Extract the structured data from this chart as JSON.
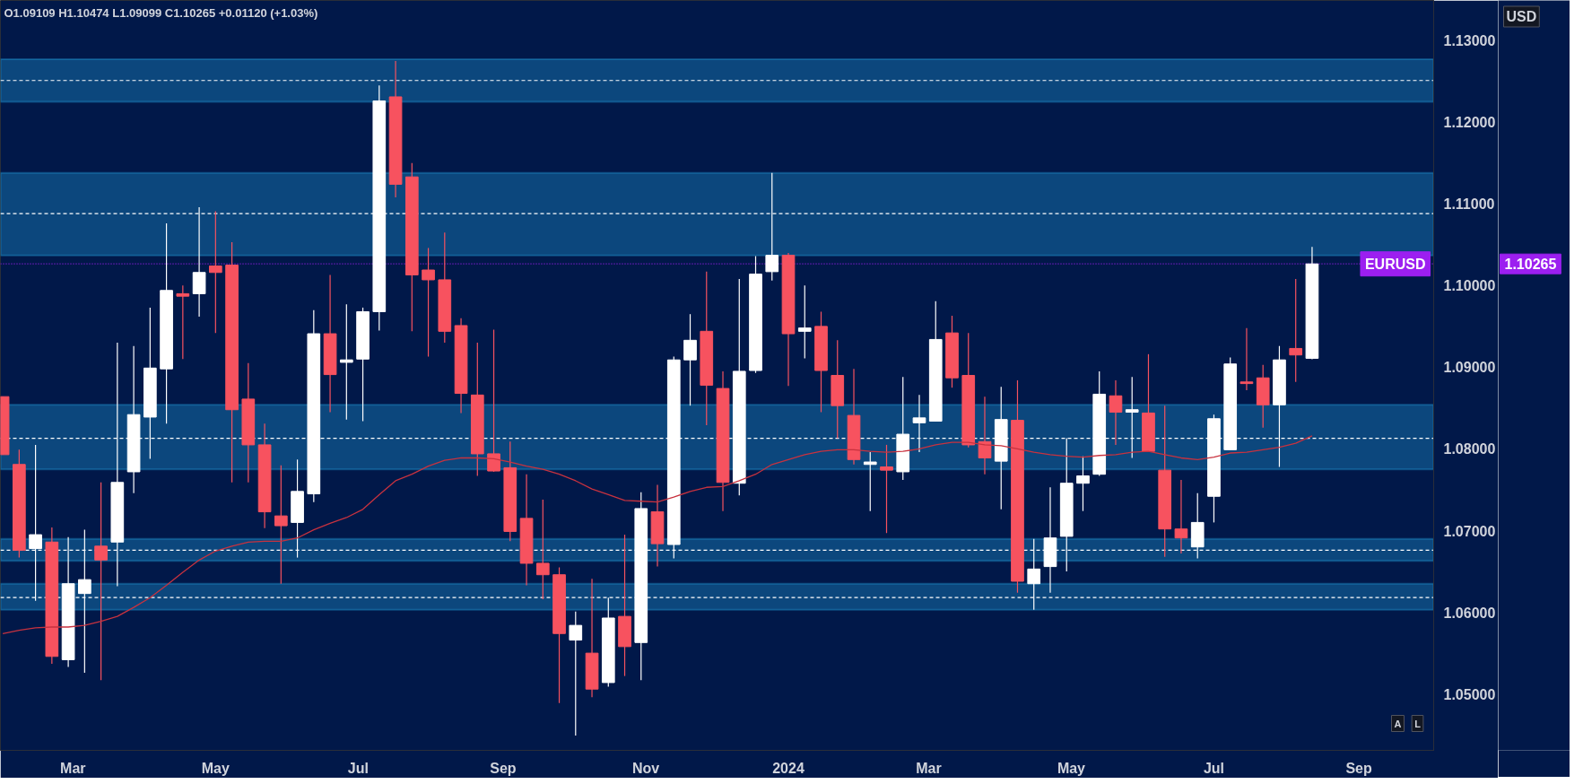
{
  "chart_data": {
    "type": "candlestick",
    "annotations": [
      "O1.09109 H1.10474 L1.09099 C1.10265 +0.01120 (+1.03%)",
      "USD",
      "A",
      "L",
      "1.10265"
    ],
    "x": [
      "2023-01-30",
      "2023-02-06",
      "2023-02-13",
      "2023-02-20",
      "2023-02-27",
      "2023-03-06",
      "2023-03-13",
      "2023-03-20",
      "2023-03-27",
      "2023-04-03",
      "2023-04-10",
      "2023-04-17",
      "2023-04-24",
      "2023-05-01",
      "2023-05-08",
      "2023-05-15",
      "2023-05-22",
      "2023-05-29",
      "2023-06-05",
      "2023-06-12",
      "2023-06-19",
      "2023-06-26",
      "2023-07-03",
      "2023-07-10",
      "2023-07-17",
      "2023-07-24",
      "2023-07-31",
      "2023-08-07",
      "2023-08-14",
      "2023-08-21",
      "2023-08-28",
      "2023-09-04",
      "2023-09-11",
      "2023-09-18",
      "2023-09-25",
      "2023-10-02",
      "2023-10-09",
      "2023-10-16",
      "2023-10-23",
      "2023-10-30",
      "2023-11-06",
      "2023-11-13",
      "2023-11-20",
      "2023-11-27",
      "2023-12-04",
      "2023-12-11",
      "2023-12-18",
      "2023-12-25",
      "2024-01-01",
      "2024-01-08",
      "2024-01-15",
      "2024-01-22",
      "2024-01-29",
      "2024-02-05",
      "2024-02-12",
      "2024-02-19",
      "2024-02-26",
      "2024-03-04",
      "2024-03-11",
      "2024-03-18",
      "2024-03-25",
      "2024-04-01",
      "2024-04-08",
      "2024-04-15",
      "2024-04-22",
      "2024-04-29",
      "2024-05-06",
      "2024-05-13",
      "2024-05-20",
      "2024-05-27",
      "2024-06-03",
      "2024-06-10",
      "2024-06-17",
      "2024-06-24",
      "2024-07-01",
      "2024-07-08",
      "2024-07-15",
      "2024-07-22",
      "2024-07-29",
      "2024-08-05",
      "2024-08-12"
    ],
    "ohlc": [
      [
        1.0864,
        1.0864,
        1.0793,
        1.0793
      ],
      [
        1.0781,
        1.0799,
        1.0667,
        1.0676
      ],
      [
        1.0678,
        1.0805,
        1.0614,
        1.0695
      ],
      [
        1.0686,
        1.0704,
        1.0537,
        1.0546
      ],
      [
        1.0542,
        1.0692,
        1.0533,
        1.0635
      ],
      [
        1.0623,
        1.0701,
        1.0526,
        1.064
      ],
      [
        1.0681,
        1.0759,
        1.0517,
        1.0664
      ],
      [
        1.0686,
        1.093,
        1.0632,
        1.0759
      ],
      [
        1.0772,
        1.0926,
        1.0746,
        1.0842
      ],
      [
        1.0839,
        1.0973,
        1.0788,
        1.0899
      ],
      [
        1.0898,
        1.1076,
        1.0831,
        1.0994
      ],
      [
        1.099,
        1.1,
        1.091,
        1.0987
      ],
      [
        1.099,
        1.1096,
        1.0962,
        1.1016
      ],
      [
        1.1024,
        1.1091,
        1.0942,
        1.1016
      ],
      [
        1.1025,
        1.1053,
        1.0759,
        1.0848
      ],
      [
        1.0861,
        1.0905,
        1.0759,
        1.0805
      ],
      [
        1.0805,
        1.0831,
        1.0703,
        1.0723
      ],
      [
        1.0718,
        1.078,
        1.0635,
        1.0706
      ],
      [
        1.071,
        1.0787,
        1.0667,
        1.0748
      ],
      [
        1.0745,
        1.097,
        1.0735,
        1.0941
      ],
      [
        1.0941,
        1.1013,
        1.0845,
        1.0891
      ],
      [
        1.0906,
        1.0977,
        1.0836,
        1.0909
      ],
      [
        1.091,
        1.0973,
        1.0834,
        1.0968
      ],
      [
        1.0968,
        1.1245,
        1.0945,
        1.1226
      ],
      [
        1.1231,
        1.1275,
        1.1108,
        1.1124
      ],
      [
        1.1133,
        1.115,
        1.0944,
        1.1013
      ],
      [
        1.1019,
        1.1046,
        1.0913,
        1.1007
      ],
      [
        1.1007,
        1.1065,
        1.093,
        1.0944
      ],
      [
        1.0951,
        1.096,
        1.0844,
        1.0868
      ],
      [
        1.0866,
        1.093,
        1.0767,
        1.0794
      ],
      [
        1.0794,
        1.0946,
        1.0772,
        1.0773
      ],
      [
        1.0777,
        1.0809,
        1.0687,
        1.0699
      ],
      [
        1.0715,
        1.0769,
        1.0633,
        1.066
      ],
      [
        1.066,
        1.0738,
        1.0616,
        1.0646
      ],
      [
        1.0646,
        1.0655,
        1.0489,
        1.0574
      ],
      [
        1.0566,
        1.0601,
        1.0449,
        1.0584
      ],
      [
        1.055,
        1.0641,
        1.0496,
        1.0506
      ],
      [
        1.0514,
        1.0618,
        1.0509,
        1.0593
      ],
      [
        1.0595,
        1.0695,
        1.0522,
        1.0558
      ],
      [
        1.0563,
        1.0747,
        1.0517,
        1.0727
      ],
      [
        1.0723,
        1.0756,
        1.0656,
        1.0684
      ],
      [
        1.0683,
        1.0913,
        1.0666,
        1.0909
      ],
      [
        1.0909,
        1.0965,
        1.0853,
        1.0933
      ],
      [
        1.0944,
        1.1017,
        1.0829,
        1.0878
      ],
      [
        1.0874,
        1.0895,
        1.0724,
        1.0759
      ],
      [
        1.0758,
        1.1008,
        1.0743,
        1.0895
      ],
      [
        1.0896,
        1.1036,
        1.0893,
        1.1014
      ],
      [
        1.1017,
        1.1138,
        1.1006,
        1.1037
      ],
      [
        1.1037,
        1.104,
        1.0877,
        1.0941
      ],
      [
        1.0944,
        1.1,
        1.0911,
        1.0948
      ],
      [
        1.095,
        1.0968,
        1.0845,
        1.0896
      ],
      [
        1.089,
        1.0933,
        1.0813,
        1.0853
      ],
      [
        1.0841,
        1.0898,
        1.0781,
        1.0787
      ],
      [
        1.0781,
        1.0796,
        1.0724,
        1.0784
      ],
      [
        1.0778,
        1.0805,
        1.0697,
        1.0774
      ],
      [
        1.0772,
        1.0888,
        1.0762,
        1.0818
      ],
      [
        1.0832,
        1.0866,
        1.0796,
        1.0838
      ],
      [
        1.0834,
        1.0981,
        1.0834,
        1.0934
      ],
      [
        1.0942,
        1.0963,
        1.0875,
        1.0887
      ],
      [
        1.089,
        1.0942,
        1.0802,
        1.0805
      ],
      [
        1.0809,
        1.0864,
        1.0769,
        1.0789
      ],
      [
        1.0785,
        1.0876,
        1.0726,
        1.0836
      ],
      [
        1.0835,
        1.0884,
        1.0624,
        1.0638
      ],
      [
        1.0635,
        1.069,
        1.0603,
        1.0653
      ],
      [
        1.0656,
        1.0753,
        1.0624,
        1.0691
      ],
      [
        1.0693,
        1.0813,
        1.065,
        1.0758
      ],
      [
        1.0758,
        1.0791,
        1.0724,
        1.0767
      ],
      [
        1.0769,
        1.0895,
        1.0767,
        1.0867
      ],
      [
        1.0865,
        1.0884,
        1.0805,
        1.0845
      ],
      [
        1.0845,
        1.0888,
        1.0789,
        1.0848
      ],
      [
        1.0844,
        1.0916,
        1.0797,
        1.0797
      ],
      [
        1.0774,
        1.0853,
        1.0668,
        1.0702
      ],
      [
        1.0702,
        1.0762,
        1.0672,
        1.0691
      ],
      [
        1.068,
        1.0746,
        1.0666,
        1.071
      ],
      [
        1.0742,
        1.0842,
        1.071,
        1.0837
      ],
      [
        1.0799,
        1.0912,
        1.0799,
        1.0904
      ],
      [
        1.0882,
        1.0948,
        1.0872,
        1.088
      ],
      [
        1.0887,
        1.0903,
        1.0826,
        1.0854
      ],
      [
        1.0854,
        1.0926,
        1.0778,
        1.0909
      ],
      [
        1.0923,
        1.1008,
        1.0882,
        1.0915
      ],
      [
        1.09109,
        1.10474,
        1.09099,
        1.10265
      ]
    ],
    "colors": [
      "#f7525f",
      "#f7525f",
      "#ffffff",
      "#f7525f",
      "#ffffff",
      "#ffffff",
      "#f7525f",
      "#ffffff",
      "#ffffff",
      "#ffffff",
      "#ffffff",
      "#f7525f",
      "#ffffff",
      "#f7525f",
      "#f7525f",
      "#f7525f",
      "#f7525f",
      "#f7525f",
      "#ffffff",
      "#ffffff",
      "#f7525f",
      "#ffffff",
      "#ffffff",
      "#ffffff",
      "#f7525f",
      "#f7525f",
      "#f7525f",
      "#f7525f",
      "#f7525f",
      "#f7525f",
      "#f7525f",
      "#f7525f",
      "#f7525f",
      "#f7525f",
      "#f7525f",
      "#ffffff",
      "#f7525f",
      "#ffffff",
      "#f7525f",
      "#ffffff",
      "#f7525f",
      "#ffffff",
      "#ffffff",
      "#f7525f",
      "#f7525f",
      "#ffffff",
      "#ffffff",
      "#ffffff",
      "#f7525f",
      "#ffffff",
      "#f7525f",
      "#f7525f",
      "#f7525f",
      "#ffffff",
      "#f7525f",
      "#ffffff",
      "#ffffff",
      "#ffffff",
      "#f7525f",
      "#f7525f",
      "#f7525f",
      "#ffffff",
      "#f7525f",
      "#ffffff",
      "#ffffff",
      "#ffffff",
      "#ffffff",
      "#ffffff",
      "#f7525f",
      "#ffffff",
      "#f7525f",
      "#f7525f",
      "#f7525f",
      "#ffffff",
      "#ffffff",
      "#ffffff",
      "#f7525f",
      "#f7525f",
      "#ffffff",
      "#f7525f",
      "#ffffff"
    ],
    "series": [
      {
        "type": "line",
        "color": "#c8323f",
        "values": [
          1.0574,
          1.0578,
          1.0581,
          1.0582,
          1.0582,
          1.0584,
          1.0589,
          1.0595,
          1.0606,
          1.0618,
          1.0633,
          1.0649,
          1.0664,
          1.0675,
          1.0681,
          1.0686,
          1.0687,
          1.0687,
          1.0691,
          1.0701,
          1.0709,
          1.0716,
          1.0726,
          1.0744,
          1.0761,
          1.0769,
          1.0779,
          1.0786,
          1.0789,
          1.0789,
          1.0788,
          1.0784,
          1.0779,
          1.0775,
          1.0769,
          1.0761,
          1.0751,
          1.0744,
          1.0737,
          1.0736,
          1.0735,
          1.0741,
          1.0748,
          1.0753,
          1.0754,
          1.0761,
          1.0769,
          1.0781,
          1.0787,
          1.0793,
          1.0797,
          1.0799,
          1.0799,
          1.0797,
          1.0796,
          1.0797,
          1.08,
          1.0805,
          1.0808,
          1.0808,
          1.0805,
          1.0804,
          1.08,
          1.0796,
          1.0793,
          1.0791,
          1.079,
          1.0792,
          1.0793,
          1.0796,
          1.0797,
          1.0793,
          1.0789,
          1.0787,
          1.079,
          1.0795,
          1.0796,
          1.0799,
          1.0802,
          1.0807,
          1.0816
        ]
      }
    ],
    "bands": [
      {
        "axis": "y",
        "from": 1.1225,
        "to": 1.1277,
        "color": "#29b6f6"
      },
      {
        "axis": "y",
        "from": 1.1037,
        "to": 1.1138,
        "color": "#29b6f6"
      },
      {
        "axis": "y",
        "from": 1.0775,
        "to": 1.0854,
        "color": "#29b6f6"
      },
      {
        "axis": "y",
        "from": 1.0663,
        "to": 1.069,
        "color": "#29b6f6"
      },
      {
        "axis": "y",
        "from": 1.0603,
        "to": 1.0635,
        "color": "#29b6f6"
      }
    ],
    "ref_lines": [
      {
        "axis": "y",
        "value": 1.1251,
        "color": "#ffffff",
        "line_style": "dashed"
      },
      {
        "axis": "y",
        "value": 1.1088,
        "color": "#ffffff",
        "line_style": "dashed"
      },
      {
        "axis": "y",
        "value": 1.0813,
        "color": "#ffffff",
        "line_style": "dashed"
      },
      {
        "axis": "y",
        "value": 1.0676,
        "color": "#ffffff",
        "line_style": "dashed"
      },
      {
        "axis": "y",
        "value": 1.0618,
        "color": "#ffffff",
        "line_style": "dashed"
      },
      {
        "axis": "y",
        "value": 1.10265,
        "label": "EURUSD",
        "color": "#9c1ff0",
        "line_style": "dotted"
      }
    ],
    "xlim": [
      "2023-01-29",
      "2024-10-03"
    ],
    "xticks": [
      {
        "value": "2023-03-01",
        "label": "Mar"
      },
      {
        "value": "2023-05-01",
        "label": "May"
      },
      {
        "value": "2023-07-01",
        "label": "Jul"
      },
      {
        "value": "2023-09-01",
        "label": "Sep"
      },
      {
        "value": "2023-11-01",
        "label": "Nov"
      },
      {
        "value": "2024-01-01",
        "label": "2024"
      },
      {
        "value": "2024-03-01",
        "label": "Mar"
      },
      {
        "value": "2024-05-01",
        "label": "May"
      },
      {
        "value": "2024-07-01",
        "label": "Jul"
      },
      {
        "value": "2024-09-01",
        "label": "Sep"
      }
    ],
    "ylim": [
      1.0431,
      1.1349
    ],
    "yticks": [
      {
        "value": 1.05,
        "label": "1.05000"
      },
      {
        "value": 1.06,
        "label": "1.06000"
      },
      {
        "value": 1.07,
        "label": "1.07000"
      },
      {
        "value": 1.08,
        "label": "1.08000"
      },
      {
        "value": 1.09,
        "label": "1.09000"
      },
      {
        "value": 1.1,
        "label": "1.10000"
      },
      {
        "value": 1.11,
        "label": "1.11000"
      },
      {
        "value": 1.12,
        "label": "1.12000"
      },
      {
        "value": 1.13,
        "label": "1.13000"
      }
    ]
  }
}
